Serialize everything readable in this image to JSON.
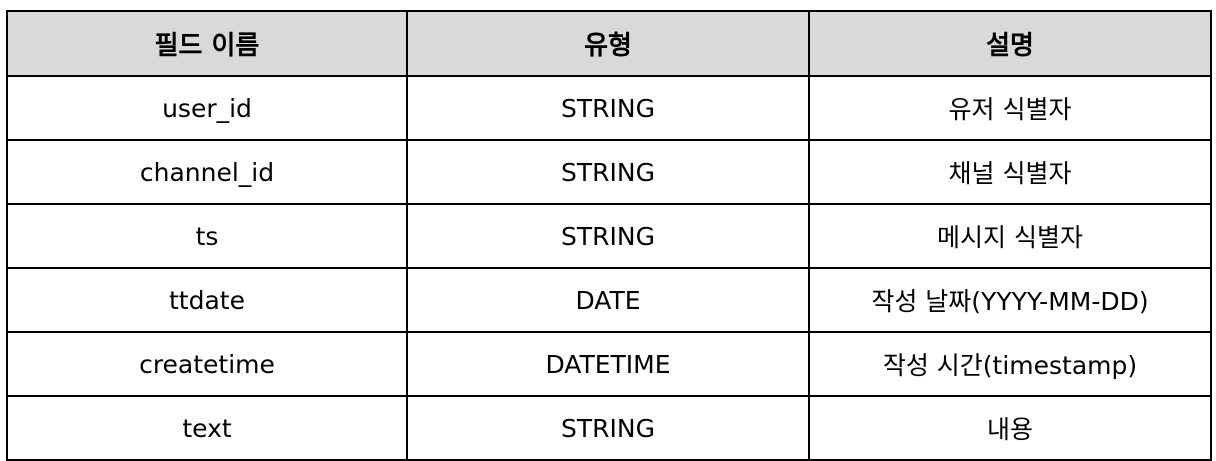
{
  "table": {
    "headers": [
      "필드 이름",
      "유형",
      "설명"
    ],
    "rows": [
      [
        "user_id",
        "STRING",
        "유저 식별자"
      ],
      [
        "channel_id",
        "STRING",
        "채널 식별자"
      ],
      [
        "ts",
        "STRING",
        "메시지 식별자"
      ],
      [
        "ttdate",
        "DATE",
        "작성 날짜(YYYY-MM-DD)"
      ],
      [
        "createtime",
        "DATETIME",
        "작성 시간(timestamp)"
      ],
      [
        "text",
        "STRING",
        "내용"
      ]
    ],
    "colors": {
      "header_background": "#d9d9d9",
      "border": "#000000",
      "text": "#000000",
      "background": "#ffffff"
    }
  }
}
